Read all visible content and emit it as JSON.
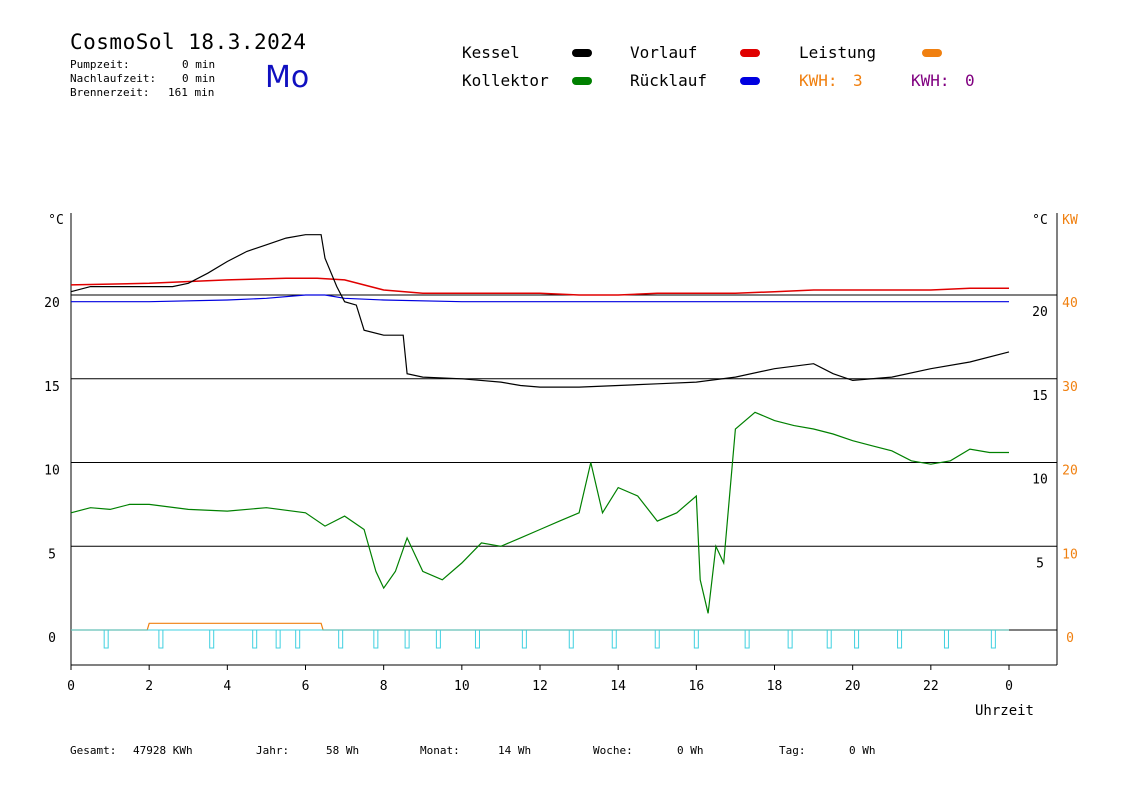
{
  "header": {
    "title": "CosmoSol 18.3.2024",
    "day": "Mo",
    "stats": [
      {
        "label": "Pumpzeit:",
        "value": "0 min"
      },
      {
        "label": "Nachlaufzeit:",
        "value": "0 min"
      },
      {
        "label": "Brennerzeit:",
        "value": "161 min"
      }
    ]
  },
  "legend": {
    "kessel": {
      "label": "Kessel",
      "color": "#000000"
    },
    "kollektor": {
      "label": "Kollektor",
      "color": "#008000"
    },
    "vorlauf": {
      "label": "Vorlauf",
      "color": "#e00000"
    },
    "ruecklauf": {
      "label": "Rücklauf",
      "color": "#0000e0"
    },
    "leistung": {
      "label": "Leistung",
      "color": "#f08010"
    },
    "kwh1": {
      "label": "KWH:",
      "value": "3",
      "color": "#f08010"
    },
    "kwh2": {
      "label": "KWH:",
      "value": "0",
      "color": "#800080"
    }
  },
  "footer": [
    {
      "label": "Gesamt:",
      "value": "47928 KWh"
    },
    {
      "label": "Jahr:",
      "value": "58 Wh"
    },
    {
      "label": "Monat:",
      "value": "14 Wh"
    },
    {
      "label": "Woche:",
      "value": "0 Wh"
    },
    {
      "label": "Tag:",
      "value": "0 Wh"
    }
  ],
  "chart_data": {
    "type": "line",
    "xlabel": "Uhrzeit",
    "x_ticks": [
      "0",
      "2",
      "4",
      "6",
      "8",
      "10",
      "12",
      "14",
      "16",
      "18",
      "20",
      "22",
      "0"
    ],
    "xlim": [
      0,
      24
    ],
    "left_axis": {
      "unit": "°C",
      "ticks": [
        "0",
        "5",
        "10",
        "15",
        "20"
      ],
      "ylim": [
        -2,
        25
      ]
    },
    "right_axis_inner": {
      "unit": "°C",
      "ticks": [
        "5",
        "10",
        "15",
        "20"
      ]
    },
    "right_axis_outer": {
      "unit": "KW",
      "ticks": [
        "0",
        "10",
        "20",
        "30",
        "40"
      ],
      "color": "#f08010"
    },
    "grid": "horizontal at 0, 5, 10, 15, 20",
    "series": [
      {
        "name": "Kessel",
        "color": "#000000",
        "x": [
          0,
          0.5,
          1,
          1.5,
          2,
          2.6,
          3,
          3.5,
          4,
          4.5,
          5,
          5.5,
          6,
          6.4,
          6.5,
          6.8,
          7,
          7.3,
          7.5,
          8,
          8.5,
          8.6,
          9,
          10,
          11,
          11.5,
          12,
          13,
          14,
          15,
          16,
          17,
          18,
          19,
          19.5,
          20,
          21,
          22,
          23,
          24
        ],
        "y": [
          20.2,
          20.5,
          20.5,
          20.5,
          20.5,
          20.5,
          20.7,
          21.3,
          22,
          22.6,
          23,
          23.4,
          23.6,
          23.6,
          22.2,
          20.5,
          19.6,
          19.4,
          17.9,
          17.6,
          17.6,
          15.3,
          15.1,
          15.0,
          14.8,
          14.6,
          14.5,
          14.5,
          14.6,
          14.7,
          14.8,
          15.1,
          15.6,
          15.9,
          15.3,
          14.9,
          15.1,
          15.6,
          16.0,
          16.6
        ]
      },
      {
        "name": "Kollektor",
        "color": "#008000",
        "x": [
          0,
          0.5,
          1,
          1.5,
          2,
          3,
          4,
          5,
          6,
          6.5,
          7,
          7.5,
          7.8,
          8,
          8.3,
          8.6,
          9,
          9.5,
          10,
          10.5,
          11,
          11.5,
          12,
          12.5,
          13,
          13.3,
          13.6,
          14,
          14.5,
          15,
          15.5,
          16,
          16.1,
          16.3,
          16.5,
          16.7,
          17,
          17.5,
          18,
          18.5,
          19,
          19.5,
          20,
          20.5,
          21,
          21.5,
          22,
          22.5,
          23,
          23.5,
          24
        ],
        "y": [
          7.0,
          7.3,
          7.2,
          7.5,
          7.5,
          7.2,
          7.1,
          7.3,
          7.0,
          6.2,
          6.8,
          6.0,
          3.5,
          2.5,
          3.5,
          5.5,
          3.5,
          3.0,
          4.0,
          5.2,
          5.0,
          5.5,
          6.0,
          6.5,
          7.0,
          10.0,
          7.0,
          8.5,
          8.0,
          6.5,
          7.0,
          8.0,
          3.0,
          1.0,
          5.0,
          4.0,
          12.0,
          13.0,
          12.5,
          12.2,
          12.0,
          11.7,
          11.3,
          11.0,
          10.7,
          10.1,
          9.9,
          10.1,
          10.8,
          10.6,
          10.6
        ]
      },
      {
        "name": "Vorlauf",
        "color": "#e00000",
        "x": [
          0,
          2,
          4,
          5.5,
          6.3,
          7,
          8,
          9,
          10,
          11,
          12,
          13,
          14,
          15,
          16,
          17,
          18,
          19,
          20,
          21,
          22,
          23,
          24
        ],
        "y": [
          20.6,
          20.7,
          20.9,
          21.0,
          21.0,
          20.9,
          20.3,
          20.1,
          20.1,
          20.1,
          20.1,
          20.0,
          20.0,
          20.1,
          20.1,
          20.1,
          20.2,
          20.3,
          20.3,
          20.3,
          20.3,
          20.4,
          20.4
        ]
      },
      {
        "name": "Rücklauf",
        "color": "#0000e0",
        "x": [
          0,
          2,
          4,
          5,
          6,
          6.5,
          7,
          8,
          10,
          12,
          14,
          16,
          18,
          20,
          22,
          24
        ],
        "y": [
          19.6,
          19.6,
          19.7,
          19.8,
          20.0,
          20.0,
          19.8,
          19.7,
          19.6,
          19.6,
          19.6,
          19.6,
          19.6,
          19.6,
          19.6,
          19.6
        ]
      },
      {
        "name": "Leistung",
        "color": "#f08010",
        "x": [
          0,
          1.95,
          2,
          4,
          5,
          6,
          6.4,
          6.45,
          24
        ],
        "y": [
          0,
          0,
          0.4,
          0.4,
          0.4,
          0.4,
          0.4,
          0,
          0
        ]
      }
    ],
    "pump_markers": {
      "color": "#40d0e0",
      "x": [
        0.9,
        2.3,
        3.6,
        4.7,
        5.3,
        5.8,
        6.9,
        7.8,
        8.6,
        9.4,
        10.4,
        11.6,
        12.8,
        13.9,
        15.0,
        16.0,
        17.3,
        18.4,
        19.4,
        20.1,
        21.2,
        22.4,
        23.6
      ]
    }
  }
}
